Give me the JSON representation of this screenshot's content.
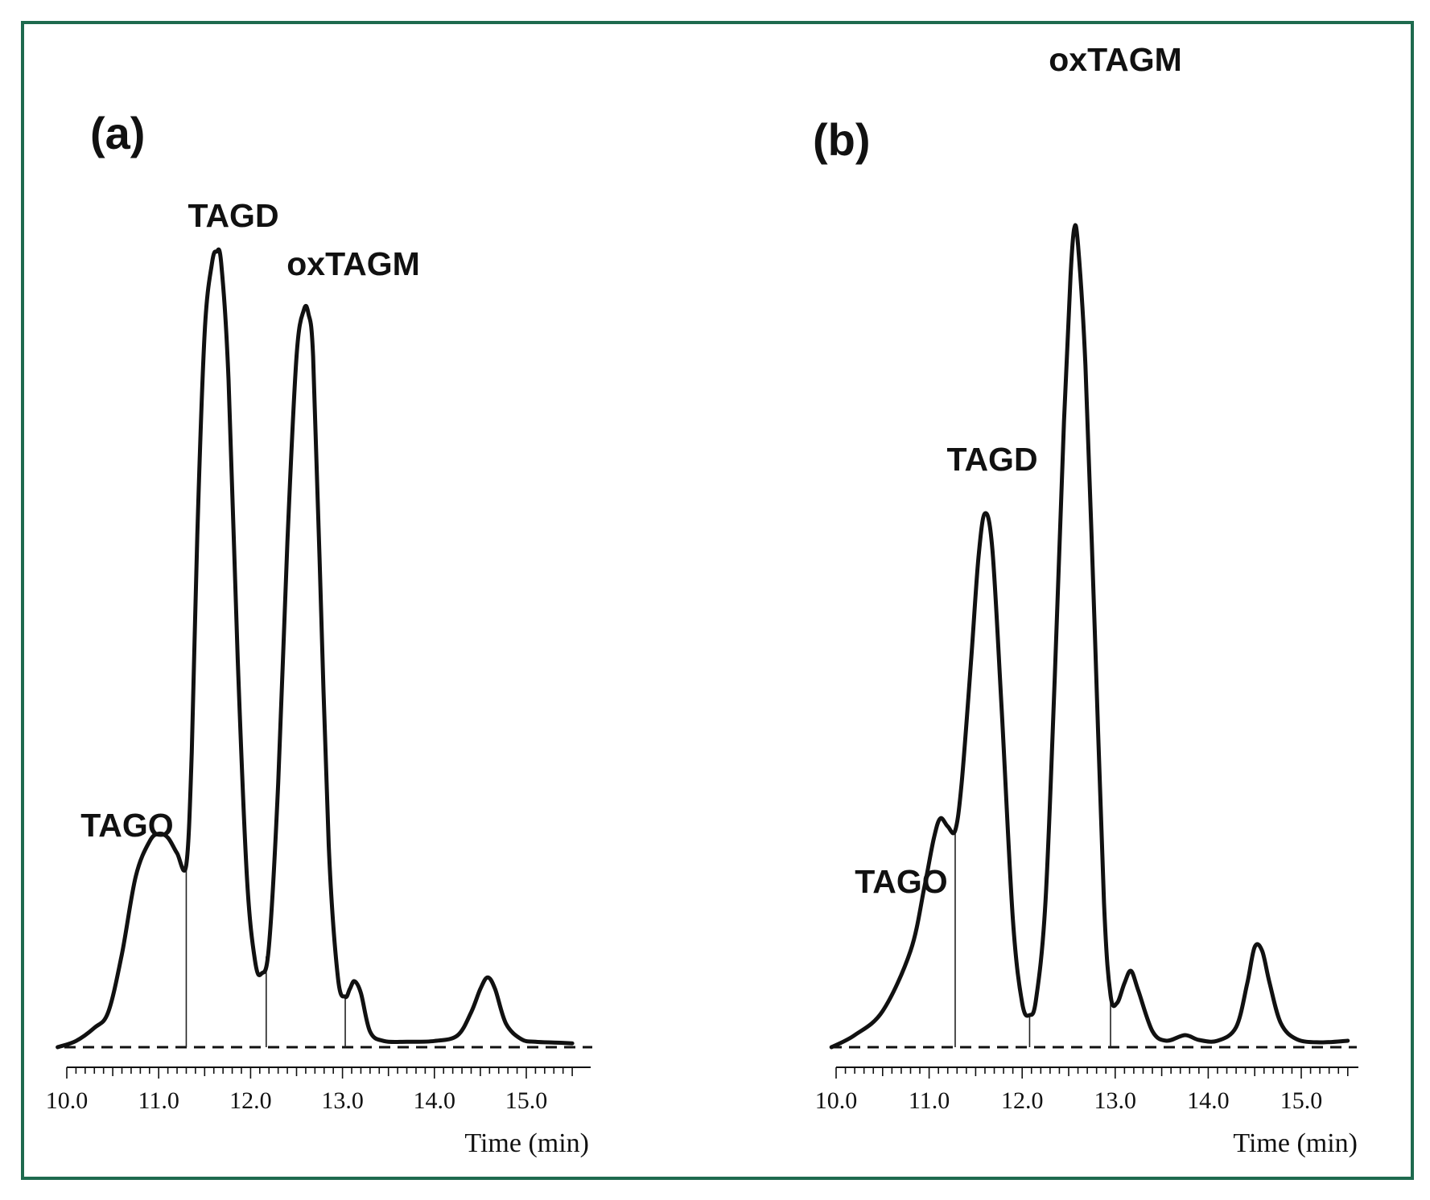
{
  "chart_data": [
    {
      "type": "line",
      "panel_label": "(a)",
      "xlabel": "Time (min)",
      "ylabel": "",
      "xlim": [
        10.0,
        15.5
      ],
      "ylim": [
        0,
        100
      ],
      "x_ticks": [
        "10.0",
        "11.0",
        "12.0",
        "13.0",
        "14.0",
        "15.0"
      ],
      "baseline": 0,
      "drop_lines": [
        11.3,
        12.17,
        13.03
      ],
      "series": [
        {
          "x": [
            9.9,
            10.1,
            10.3,
            10.45,
            10.6,
            10.75,
            10.9,
            11.0,
            11.1,
            11.2,
            11.3,
            11.36,
            11.42,
            11.5,
            11.58,
            11.63,
            11.68,
            11.76,
            11.86,
            11.96,
            12.05,
            12.12,
            12.2,
            12.3,
            12.4,
            12.5,
            12.58,
            12.63,
            12.68,
            12.75,
            12.85,
            12.95,
            13.03,
            13.08,
            13.13,
            13.2,
            13.3,
            13.45,
            13.7,
            14.0,
            14.25,
            14.4,
            14.5,
            14.58,
            14.66,
            14.78,
            14.95,
            15.1,
            15.3,
            15.5
          ],
          "y": [
            0,
            0.8,
            2.5,
            4.5,
            12.0,
            22.0,
            26.5,
            27.5,
            27.0,
            25.0,
            23.5,
            38.0,
            66.0,
            92.0,
            101.0,
            102.5,
            101.0,
            86.0,
            50.0,
            22.0,
            11.0,
            9.5,
            13.0,
            34.0,
            65.0,
            89.0,
            95.0,
            94.5,
            89.0,
            63.0,
            26.0,
            9.0,
            6.5,
            7.5,
            8.5,
            7.0,
            2.0,
            0.8,
            0.7,
            0.8,
            1.5,
            4.5,
            7.5,
            9.0,
            7.5,
            3.0,
            1.0,
            0.7,
            0.6,
            0.5
          ]
        }
      ],
      "annotations": [
        {
          "text": "TAGO",
          "x": 11.05
        },
        {
          "text": "TAGD",
          "x": 11.63
        },
        {
          "text": "oxTAGM",
          "x": 12.63
        }
      ]
    },
    {
      "type": "line",
      "panel_label": "(b)",
      "xlabel": "Time (min)",
      "ylabel": "",
      "xlim": [
        10.0,
        15.5
      ],
      "ylim": [
        0,
        100
      ],
      "x_ticks": [
        "10.0",
        "11.0",
        "12.0",
        "13.0",
        "14.0",
        "15.0"
      ],
      "baseline": 0,
      "drop_lines": [
        11.28,
        12.08,
        12.95
      ],
      "series": [
        {
          "x": [
            9.95,
            10.2,
            10.5,
            10.8,
            10.95,
            11.05,
            11.12,
            11.2,
            11.28,
            11.35,
            11.45,
            11.53,
            11.6,
            11.68,
            11.78,
            11.9,
            12.0,
            12.08,
            12.15,
            12.25,
            12.35,
            12.45,
            12.52,
            12.56,
            12.6,
            12.68,
            12.78,
            12.88,
            12.95,
            13.02,
            13.1,
            13.17,
            13.25,
            13.4,
            13.55,
            13.75,
            13.9,
            14.1,
            14.3,
            14.42,
            14.5,
            14.58,
            14.66,
            14.78,
            14.95,
            15.2,
            15.5
          ],
          "y": [
            0,
            1.5,
            4.5,
            12.0,
            20.0,
            26.0,
            28.5,
            27.5,
            27.0,
            33.0,
            48.0,
            61.0,
            66.5,
            62.0,
            42.0,
            16.0,
            5.5,
            4.0,
            6.0,
            18.0,
            46.0,
            78.0,
            96.0,
            102.0,
            100.0,
            85.0,
            52.0,
            18.0,
            6.5,
            5.5,
            8.0,
            9.5,
            7.0,
            2.0,
            0.8,
            1.5,
            0.9,
            0.8,
            2.5,
            8.0,
            12.5,
            12.0,
            8.0,
            3.0,
            1.0,
            0.6,
            0.8
          ]
        }
      ],
      "annotations": [
        {
          "text": "TAGO",
          "x": 11.2
        },
        {
          "text": "TAGD",
          "x": 11.6
        },
        {
          "text": "oxTAGM",
          "x": 12.56
        }
      ]
    }
  ]
}
